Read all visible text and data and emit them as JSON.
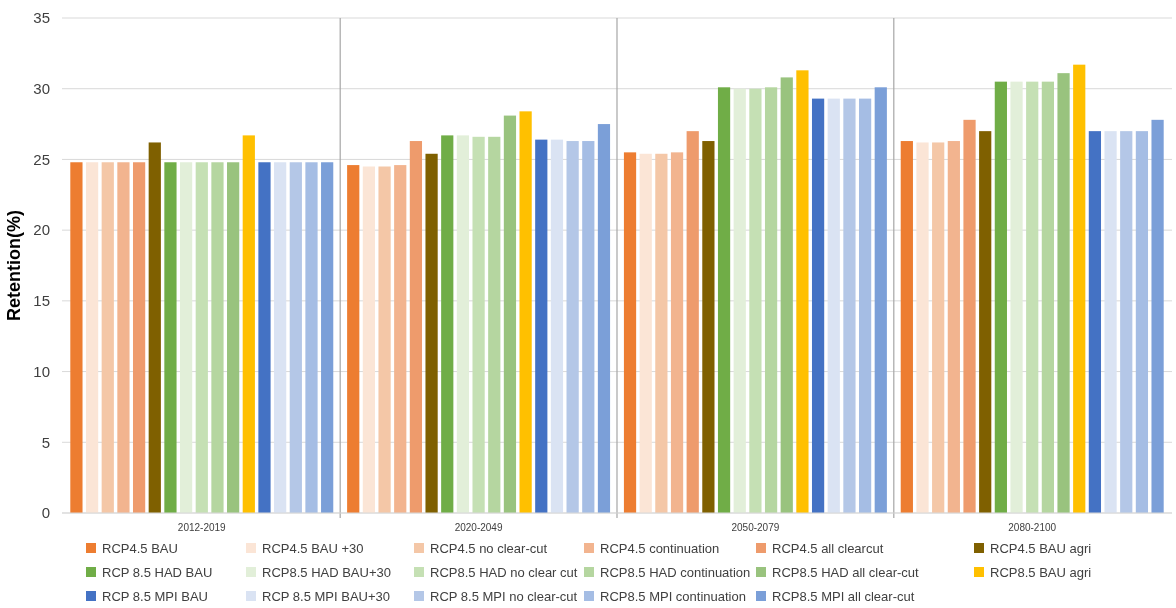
{
  "chart_data": {
    "type": "bar",
    "ylabel": "Retention(%)",
    "categories": [
      "2012-2019",
      "2020-2049",
      "2050-2079",
      "2080-2100"
    ],
    "ylim": [
      0,
      35
    ],
    "yticks": [
      0,
      5,
      10,
      15,
      20,
      25,
      30,
      35
    ],
    "grid": "y",
    "legend": "bottom",
    "series": [
      {
        "name": "RCP4.5 BAU",
        "color": "#ed7d31",
        "values": [
          24.8,
          24.6,
          25.5,
          26.3
        ]
      },
      {
        "name": "RCP4.5 BAU +30",
        "color": "#fbe5d6",
        "values": [
          24.8,
          24.5,
          25.4,
          26.2
        ]
      },
      {
        "name": "RCP4.5 no clear-cut",
        "color": "#f4c7a7",
        "values": [
          24.8,
          24.5,
          25.4,
          26.2
        ]
      },
      {
        "name": "RCP4.5 continuation",
        "color": "#f2b48f",
        "values": [
          24.8,
          24.6,
          25.5,
          26.3
        ]
      },
      {
        "name": "RCP4.5 all clearcut",
        "color": "#ee9b6c",
        "values": [
          24.8,
          26.3,
          27.0,
          27.8
        ]
      },
      {
        "name": "RCP4.5 BAU agri",
        "color": "#7f6000",
        "values": [
          26.2,
          25.4,
          26.3,
          27.0
        ]
      },
      {
        "name": "RCP 8.5 HAD BAU",
        "color": "#70ad47",
        "values": [
          24.8,
          26.7,
          30.1,
          30.5
        ]
      },
      {
        "name": "RCP8.5 HAD BAU+30",
        "color": "#e2efd9",
        "values": [
          24.8,
          26.7,
          30.0,
          30.5
        ]
      },
      {
        "name": "RCP8.5 HAD no clear cut",
        "color": "#c5e0b4",
        "values": [
          24.8,
          26.6,
          30.0,
          30.5
        ]
      },
      {
        "name": "RCP8.5 HAD continuation",
        "color": "#b5d6a0",
        "values": [
          24.8,
          26.6,
          30.1,
          30.5
        ]
      },
      {
        "name": "RCP8.5 HAD all clear-cut",
        "color": "#99c37e",
        "values": [
          24.8,
          28.1,
          30.8,
          31.1
        ]
      },
      {
        "name": "RCP8.5 BAU agri",
        "color": "#ffc000",
        "values": [
          26.7,
          28.4,
          31.3,
          31.7
        ]
      },
      {
        "name": "RCP 8.5 MPI BAU",
        "color": "#4472c4",
        "values": [
          24.8,
          26.4,
          29.3,
          27.0
        ]
      },
      {
        "name": "RCP 8.5 MPI BAU+30",
        "color": "#dae3f3",
        "values": [
          24.8,
          26.4,
          29.3,
          27.0
        ]
      },
      {
        "name": "RCP 8.5 MPI no clear-cut",
        "color": "#b4c7e7",
        "values": [
          24.8,
          26.3,
          29.3,
          27.0
        ]
      },
      {
        "name": "RCP8.5 MPI continuation",
        "color": "#a5bde4",
        "values": [
          24.8,
          26.3,
          29.3,
          27.0
        ]
      },
      {
        "name": "RCP8.5 MPI all clear-cut",
        "color": "#7b9fd8",
        "values": [
          24.8,
          27.5,
          30.1,
          27.8
        ]
      }
    ]
  }
}
